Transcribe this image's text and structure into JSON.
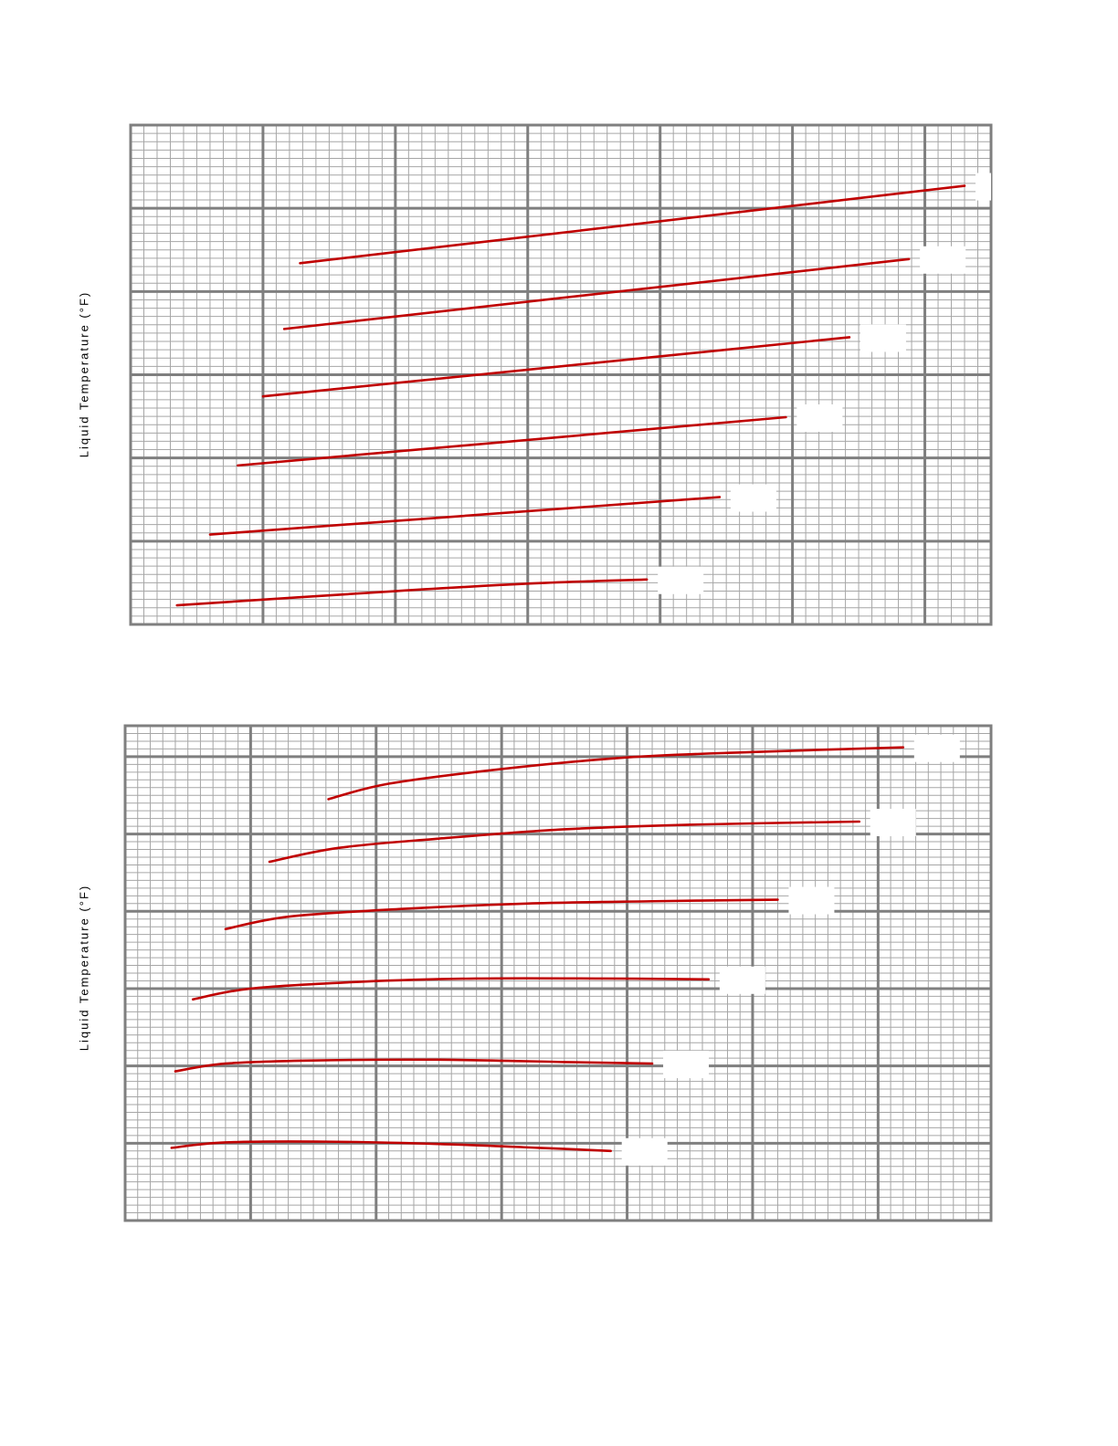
{
  "chart_data": [
    {
      "type": "line",
      "ylabel": "Liquid Temperature (°F)",
      "xlabel": "",
      "title": "",
      "xlim": [
        0,
        6.5
      ],
      "ylim": [
        0,
        6
      ],
      "x_major_ticks": [
        0,
        1,
        2,
        3,
        4,
        5,
        6
      ],
      "y_major_ticks": [
        0,
        1,
        2,
        3,
        4,
        5,
        6
      ],
      "grid": true,
      "legend": "none",
      "line_color": "#c00000",
      "series": [
        {
          "points": [
            [
              1.28,
              4.34
            ],
            [
              6.3,
              5.27
            ]
          ]
        },
        {
          "points": [
            [
              1.16,
              3.55
            ],
            [
              5.88,
              4.39
            ]
          ]
        },
        {
          "points": [
            [
              1.0,
              2.74
            ],
            [
              5.43,
              3.45
            ]
          ]
        },
        {
          "points": [
            [
              0.81,
              1.91
            ],
            [
              4.95,
              2.49
            ]
          ]
        },
        {
          "points": [
            [
              0.6,
              1.08
            ],
            [
              4.45,
              1.53
            ]
          ]
        },
        {
          "points": [
            [
              0.35,
              0.23
            ],
            [
              2.0,
              0.4
            ],
            [
              3.0,
              0.49
            ],
            [
              3.9,
              0.54
            ]
          ]
        }
      ]
    },
    {
      "type": "line",
      "ylabel": "Liquid Temperature (°F)",
      "xlabel": "",
      "title": "",
      "xlim": [
        0,
        6.9
      ],
      "ylim": [
        0,
        6.4
      ],
      "x_major_ticks": [
        0,
        1,
        2,
        3,
        4,
        5,
        6
      ],
      "y_major_ticks": [
        0,
        1,
        2,
        3,
        4,
        5,
        6
      ],
      "grid": true,
      "legend": "none",
      "line_color": "#c00000",
      "series": [
        {
          "points": [
            [
              1.62,
              5.45
            ],
            [
              2.1,
              5.65
            ],
            [
              3.0,
              5.84
            ],
            [
              4.0,
              5.99
            ],
            [
              5.0,
              6.06
            ],
            [
              6.2,
              6.12
            ]
          ]
        },
        {
          "points": [
            [
              1.15,
              4.64
            ],
            [
              1.7,
              4.82
            ],
            [
              2.5,
              4.94
            ],
            [
              3.5,
              5.06
            ],
            [
              4.5,
              5.12
            ],
            [
              5.85,
              5.16
            ]
          ]
        },
        {
          "points": [
            [
              0.8,
              3.77
            ],
            [
              1.3,
              3.93
            ],
            [
              2.2,
              4.03
            ],
            [
              3.2,
              4.1
            ],
            [
              4.2,
              4.13
            ],
            [
              5.2,
              4.15
            ]
          ]
        },
        {
          "points": [
            [
              0.54,
              2.86
            ],
            [
              1.0,
              3.0
            ],
            [
              1.9,
              3.09
            ],
            [
              2.8,
              3.13
            ],
            [
              3.8,
              3.13
            ],
            [
              4.65,
              3.12
            ]
          ]
        },
        {
          "points": [
            [
              0.4,
              1.93
            ],
            [
              0.8,
              2.03
            ],
            [
              1.5,
              2.07
            ],
            [
              2.5,
              2.08
            ],
            [
              3.5,
              2.05
            ],
            [
              4.2,
              2.03
            ]
          ]
        },
        {
          "points": [
            [
              0.37,
              0.94
            ],
            [
              0.8,
              1.01
            ],
            [
              1.6,
              1.02
            ],
            [
              2.5,
              0.99
            ],
            [
              3.3,
              0.94
            ],
            [
              3.87,
              0.9
            ]
          ]
        }
      ]
    }
  ]
}
